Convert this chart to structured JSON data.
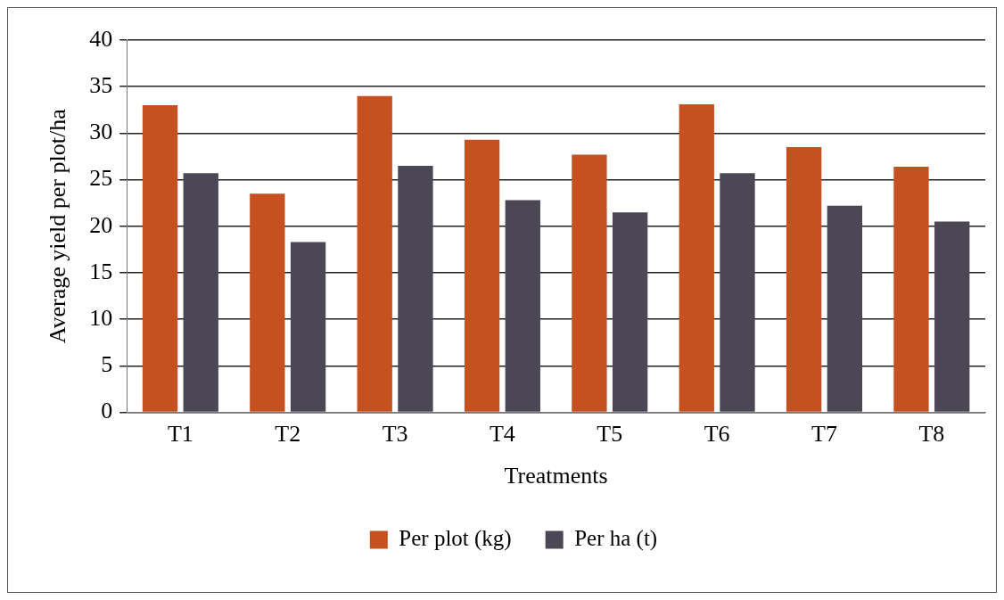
{
  "chart_data": {
    "type": "bar",
    "categories": [
      "T1",
      "T2",
      "T3",
      "T4",
      "T5",
      "T6",
      "T7",
      "T8"
    ],
    "xlabel": "Treatments",
    "ylabel": "Average yield per plot/ha",
    "series": [
      {
        "name": "Per plot (kg)",
        "color": "#c4511f",
        "values": [
          33.0,
          23.5,
          34.0,
          29.3,
          27.7,
          33.1,
          28.5,
          26.4
        ]
      },
      {
        "name": "Per ha (t)",
        "color": "#4b4755",
        "values": [
          25.7,
          18.3,
          26.5,
          22.8,
          21.5,
          25.7,
          22.2,
          20.5
        ]
      }
    ],
    "ylim": [
      0,
      40
    ],
    "yticks": [
      0,
      5,
      10,
      15,
      20,
      25,
      30,
      35,
      40
    ],
    "grid": "y",
    "legend": "bottom"
  }
}
